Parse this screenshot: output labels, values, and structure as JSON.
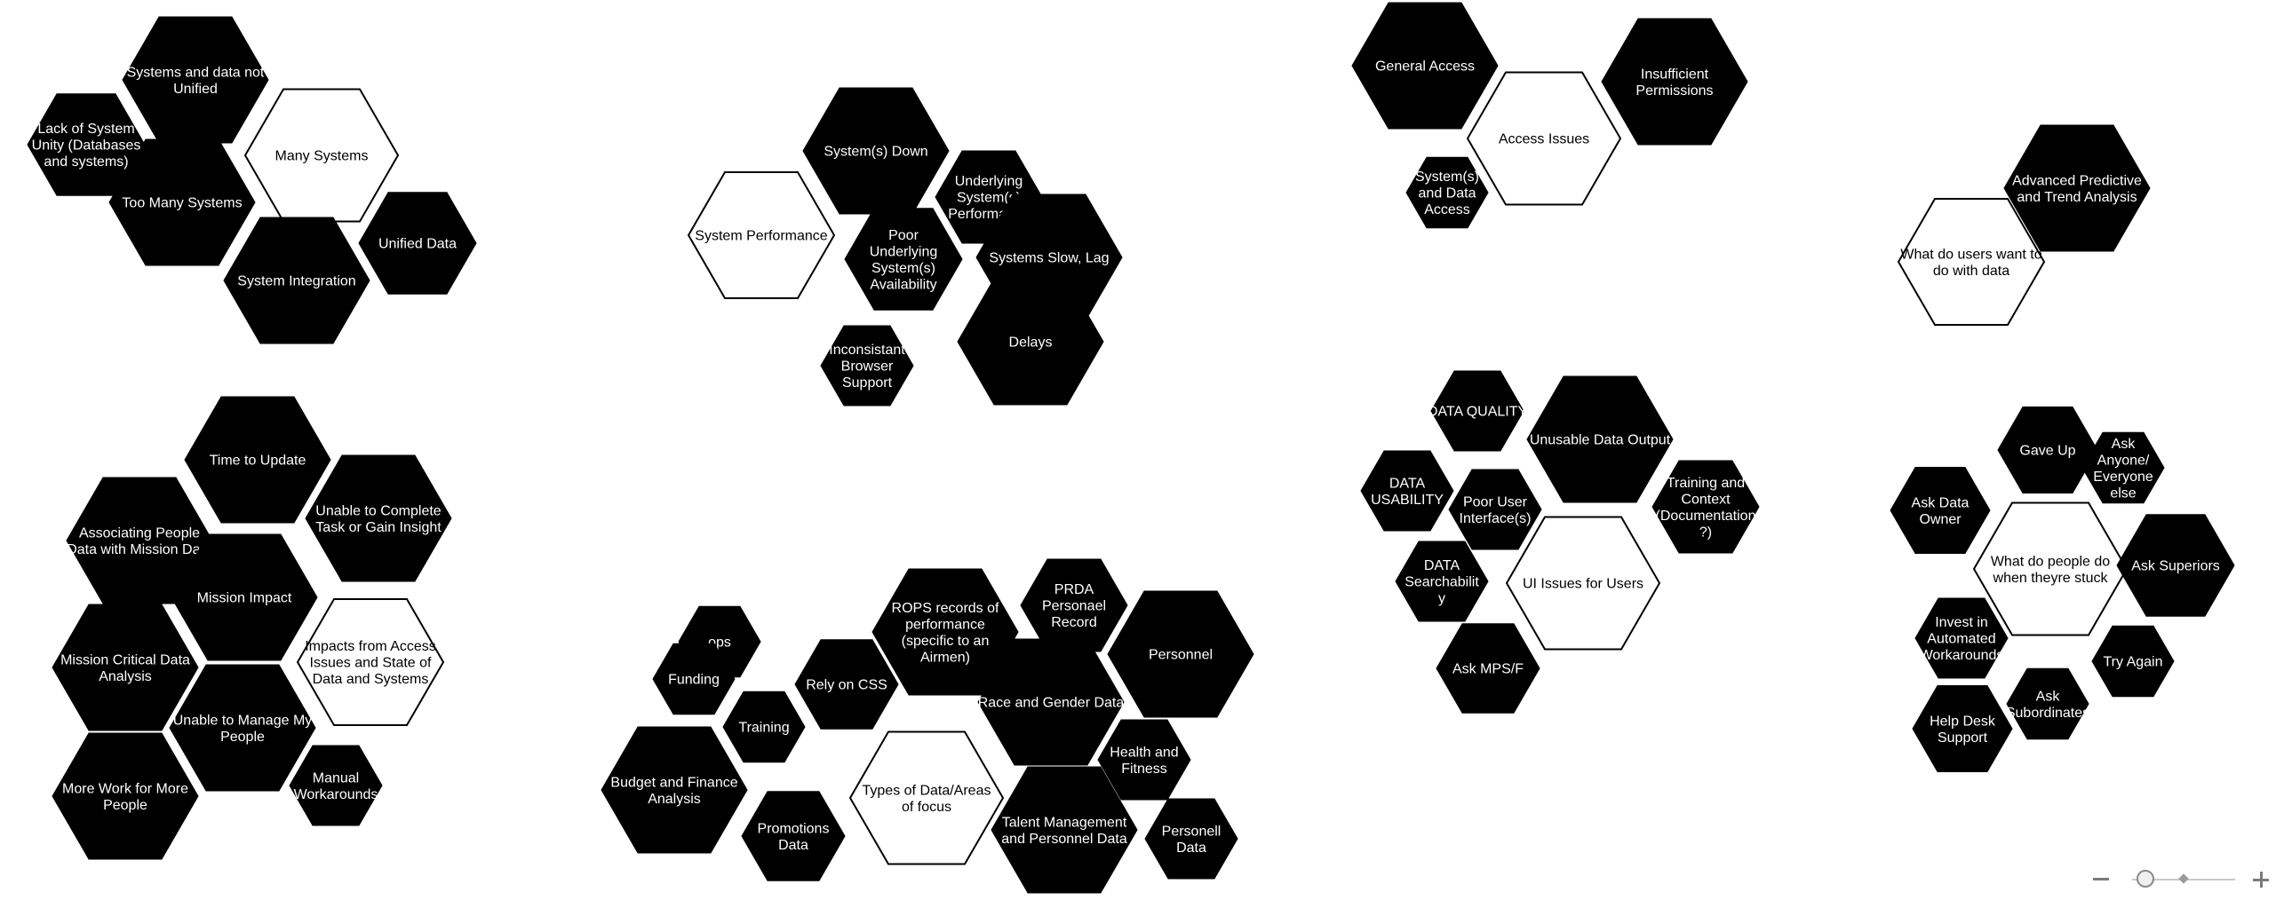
{
  "diagram": {
    "clusters": [
      {
        "items": [
          {
            "text": "Systems and data not Unified",
            "style": "dark"
          },
          {
            "text": "Lack of System Unity (Databases and systems)",
            "style": "dark"
          },
          {
            "text": "Too Many Systems",
            "style": "dark"
          },
          {
            "text": "Many Systems",
            "style": "light"
          },
          {
            "text": "Unified Data",
            "style": "dark"
          },
          {
            "text": "System Integration",
            "style": "dark"
          }
        ]
      },
      {
        "items": [
          {
            "text": "System(s) Down",
            "style": "dark"
          },
          {
            "text": "Underlying System(s) Performance",
            "style": "dark"
          },
          {
            "text": "System Performance",
            "style": "light"
          },
          {
            "text": "Poor Underlying System(s) Availability",
            "style": "dark"
          },
          {
            "text": "Systems Slow, Lag",
            "style": "dark"
          },
          {
            "text": "Inconsistant Browser Support",
            "style": "dark"
          },
          {
            "text": "Delays",
            "style": "dark"
          }
        ]
      },
      {
        "items": [
          {
            "text": "General Access",
            "style": "dark"
          },
          {
            "text": "Insufficient Permissions",
            "style": "dark"
          },
          {
            "text": "Access Issues",
            "style": "light"
          },
          {
            "text": "System(s) and Data Access",
            "style": "dark"
          }
        ]
      },
      {
        "items": [
          {
            "text": "Advanced Predictive and Trend Analysis",
            "style": "dark"
          },
          {
            "text": "What do users want to do with data",
            "style": "light"
          }
        ]
      },
      {
        "items": [
          {
            "text": "Time to Update",
            "style": "dark"
          },
          {
            "text": "Associating People Data with Mission Data",
            "style": "dark"
          },
          {
            "text": "Unable to Complete Task or Gain Insight",
            "style": "dark"
          },
          {
            "text": "Mission Impact",
            "style": "dark"
          },
          {
            "text": "Mission Critical Data Analysis",
            "style": "dark"
          },
          {
            "text": "Impacts from Access Issues and State of Data and Systems",
            "style": "light"
          },
          {
            "text": "Unable to Manage My People",
            "style": "dark"
          },
          {
            "text": "More Work for More People",
            "style": "dark"
          },
          {
            "text": "Manual Workarounds",
            "style": "dark"
          }
        ]
      },
      {
        "items": [
          {
            "text": "PRDA Personael Record",
            "style": "dark"
          },
          {
            "text": "ROPS records of performance (specific to an Airmen)",
            "style": "dark"
          },
          {
            "text": "ops",
            "style": "dark"
          },
          {
            "text": "Personnel",
            "style": "dark"
          },
          {
            "text": "Funding",
            "style": "dark"
          },
          {
            "text": "Rely on CSS",
            "style": "dark"
          },
          {
            "text": "Race and Gender Data",
            "style": "dark"
          },
          {
            "text": "Training",
            "style": "dark"
          },
          {
            "text": "Health and Fitness",
            "style": "dark"
          },
          {
            "text": "Budget and Finance Analysis",
            "style": "dark"
          },
          {
            "text": "Types of Data/Areas of focus",
            "style": "light"
          },
          {
            "text": "Talent Management and Personnel Data",
            "style": "dark"
          },
          {
            "text": "Promotions Data",
            "style": "dark"
          },
          {
            "text": "Personell Data",
            "style": "dark"
          }
        ]
      },
      {
        "items": [
          {
            "text": "DATA QUALITY",
            "style": "dark"
          },
          {
            "text": "Unusable Data Output",
            "style": "dark"
          },
          {
            "text": "DATA USABILITY",
            "style": "dark"
          },
          {
            "text": "Poor User Interface(s)",
            "style": "dark"
          },
          {
            "text": "Training and Context (Documentation?)",
            "style": "dark"
          },
          {
            "text": "DATA Searchability",
            "style": "dark"
          },
          {
            "text": "UI Issues for Users",
            "style": "light"
          },
          {
            "text": "Ask MPS/F",
            "style": "dark"
          }
        ]
      },
      {
        "items": [
          {
            "text": "Gave Up",
            "style": "dark"
          },
          {
            "text": "Ask Anyone/ Everyone else",
            "style": "dark"
          },
          {
            "text": "Ask Data Owner",
            "style": "dark"
          },
          {
            "text": "What do people do when theyre stuck",
            "style": "light"
          },
          {
            "text": "Ask Superiors",
            "style": "dark"
          },
          {
            "text": "Invest in Automated Workarounds",
            "style": "dark"
          },
          {
            "text": "Try Again",
            "style": "dark"
          },
          {
            "text": "Ask Subordinates",
            "style": "dark"
          },
          {
            "text": "Help Desk Support",
            "style": "dark"
          }
        ]
      }
    ]
  },
  "zoom": {
    "minus_icon": "minus-icon",
    "plus_icon": "plus-icon"
  }
}
